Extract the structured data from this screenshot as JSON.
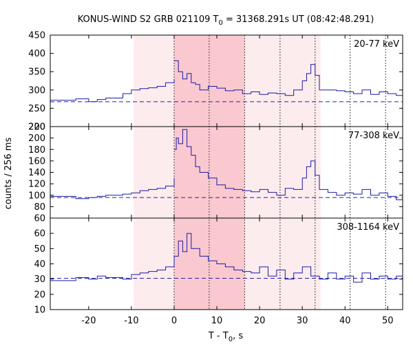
{
  "title": {
    "prefix": "KONUS-WIND S2 GRB 021109 T",
    "sub": "0",
    "suffix": " = 31368.291s UT (08:42:48.291)"
  },
  "xlabel": {
    "prefix": "T - T",
    "sub": "0",
    "suffix": ", s"
  },
  "ylabel": "counts / 256 ms",
  "chart_data": {
    "type": "line",
    "step": true,
    "xlim": [
      -29,
      53.5
    ],
    "xticks": [
      -20,
      -10,
      0,
      10,
      20,
      30,
      40,
      50
    ],
    "shaded_intervals": [
      {
        "x0": -9.5,
        "x1": 34.3,
        "level": "light"
      },
      {
        "x0": 0.0,
        "x1": 16.5,
        "level": "dark"
      }
    ],
    "dotted_lines": [
      0,
      8.2,
      16.5,
      24.8,
      33.0,
      41.2,
      49.5
    ],
    "panels": [
      {
        "label": "20-77 keV",
        "ylim": [
          200,
          450
        ],
        "yticks": [
          200,
          250,
          300,
          350,
          400,
          450
        ],
        "background": 268,
        "series": [
          {
            "x": [
              -29,
              -23,
              -20,
              -18,
              -16,
              -12,
              -10,
              -8,
              -6,
              -4,
              -2,
              0
            ],
            "y": [
              272,
              276,
              268,
              274,
              278,
              290,
              300,
              304,
              306,
              310,
              320,
              330
            ]
          },
          {
            "x": [
              0,
              1,
              2,
              3,
              4,
              5,
              6,
              8,
              10,
              12,
              14,
              16,
              18,
              20,
              22,
              24,
              26,
              28,
              30,
              31,
              32,
              33,
              34,
              36,
              38,
              40,
              42,
              44,
              46,
              48,
              50,
              52,
              53.5
            ],
            "y": [
              380,
              350,
              330,
              345,
              320,
              315,
              300,
              310,
              305,
              298,
              300,
              290,
              295,
              288,
              292,
              290,
              285,
              300,
              325,
              345,
              370,
              340,
              300,
              300,
              298,
              295,
              290,
              300,
              288,
              295,
              290,
              285,
              290
            ]
          }
        ]
      },
      {
        "label": "77-308 keV",
        "ylim": [
          60,
          220
        ],
        "yticks": [
          60,
          80,
          100,
          120,
          140,
          160,
          180,
          200,
          220
        ],
        "background": 96,
        "series": [
          {
            "x": [
              -29,
              -23,
              -20,
              -18,
              -16,
              -12,
              -10,
              -8,
              -6,
              -4,
              -2,
              0
            ],
            "y": [
              98,
              94,
              96,
              98,
              100,
              102,
              104,
              108,
              110,
              112,
              116,
              130
            ]
          },
          {
            "x": [
              0,
              0.5,
              1,
              2,
              3,
              4,
              5,
              6,
              8,
              10,
              12,
              14,
              16,
              18,
              20,
              22,
              24,
              26,
              28,
              30,
              31,
              32,
              33,
              34,
              36,
              38,
              40,
              42,
              44,
              46,
              48,
              50,
              52,
              53.5
            ],
            "y": [
              180,
              200,
              190,
              215,
              185,
              170,
              150,
              140,
              130,
              118,
              112,
              110,
              108,
              106,
              110,
              105,
              100,
              112,
              110,
              130,
              150,
              160,
              135,
              110,
              105,
              100,
              104,
              102,
              110,
              100,
              104,
              98,
              92,
              95
            ]
          }
        ]
      },
      {
        "label": "308-1164 keV",
        "ylim": [
          10,
          70
        ],
        "yticks": [
          10,
          20,
          30,
          40,
          50,
          60
        ],
        "background": 30.5,
        "series": [
          {
            "x": [
              -29,
              -23,
              -20,
              -18,
              -16,
              -12,
              -10,
              -8,
              -6,
              -4,
              -2,
              0
            ],
            "y": [
              29,
              31,
              30,
              32,
              31,
              30,
              33,
              34,
              35,
              36,
              38,
              45
            ]
          },
          {
            "x": [
              0,
              1,
              2,
              3,
              4,
              6,
              8,
              10,
              12,
              14,
              16,
              18,
              20,
              22,
              24,
              26,
              28,
              30,
              32,
              34,
              36,
              38,
              40,
              42,
              44,
              46,
              48,
              50,
              52,
              53.5
            ],
            "y": [
              45,
              55,
              48,
              60,
              50,
              45,
              42,
              40,
              38,
              36,
              35,
              34,
              38,
              32,
              36,
              30,
              34,
              38,
              32,
              30,
              34,
              30,
              32,
              28,
              34,
              30,
              32,
              30,
              32,
              30
            ]
          }
        ]
      }
    ]
  }
}
